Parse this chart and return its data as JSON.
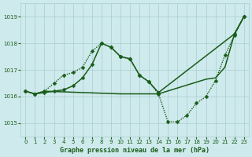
{
  "title": "Graphe pression niveau de la mer (hPa)",
  "background_color": "#ceeaec",
  "grid_color": "#aacdd0",
  "line_color": "#1a5c1a",
  "ylim": [
    1014.5,
    1019.5
  ],
  "xlim": [
    -0.5,
    23.5
  ],
  "yticks": [
    1015,
    1016,
    1017,
    1018,
    1019
  ],
  "xticks": [
    0,
    1,
    2,
    3,
    4,
    5,
    6,
    7,
    8,
    9,
    10,
    11,
    12,
    13,
    14,
    15,
    16,
    17,
    18,
    19,
    20,
    21,
    22,
    23
  ],
  "series": [
    {
      "x": [
        0,
        1,
        2,
        3,
        4,
        5,
        6,
        7,
        8,
        9,
        10,
        11,
        12,
        13,
        14,
        15,
        16,
        17,
        18,
        19,
        20,
        21,
        22,
        23
      ],
      "y": [
        1016.2,
        1016.1,
        1016.2,
        1016.5,
        1016.8,
        1016.9,
        1017.1,
        1017.7,
        1018.0,
        1017.85,
        1017.5,
        1017.4,
        1016.8,
        1016.55,
        1016.1,
        1015.05,
        1015.05,
        1015.3,
        1015.75,
        1016.0,
        1016.6,
        1017.55,
        1018.3,
        1019.0
      ],
      "style": "dotted",
      "marker": "D",
      "markersize": 2.5,
      "linewidth": 1.0
    },
    {
      "x": [
        0,
        1,
        2,
        10,
        14,
        19,
        20,
        21,
        22,
        23
      ],
      "y": [
        1016.2,
        1016.1,
        1016.2,
        1016.1,
        1016.1,
        1016.65,
        1016.7,
        1017.1,
        1018.35,
        1019.0
      ],
      "style": "-",
      "marker": null,
      "markersize": 0,
      "linewidth": 1.1
    },
    {
      "x": [
        0,
        1,
        2,
        3,
        4,
        5,
        6,
        7,
        8,
        9,
        10,
        11,
        12,
        13,
        14,
        22,
        23
      ],
      "y": [
        1016.2,
        1016.1,
        1016.15,
        1016.2,
        1016.25,
        1016.4,
        1016.7,
        1017.2,
        1018.0,
        1017.85,
        1017.5,
        1017.42,
        1016.8,
        1016.55,
        1016.15,
        1018.35,
        1019.0
      ],
      "style": "-",
      "marker": "D",
      "markersize": 2.5,
      "linewidth": 1.1
    }
  ]
}
